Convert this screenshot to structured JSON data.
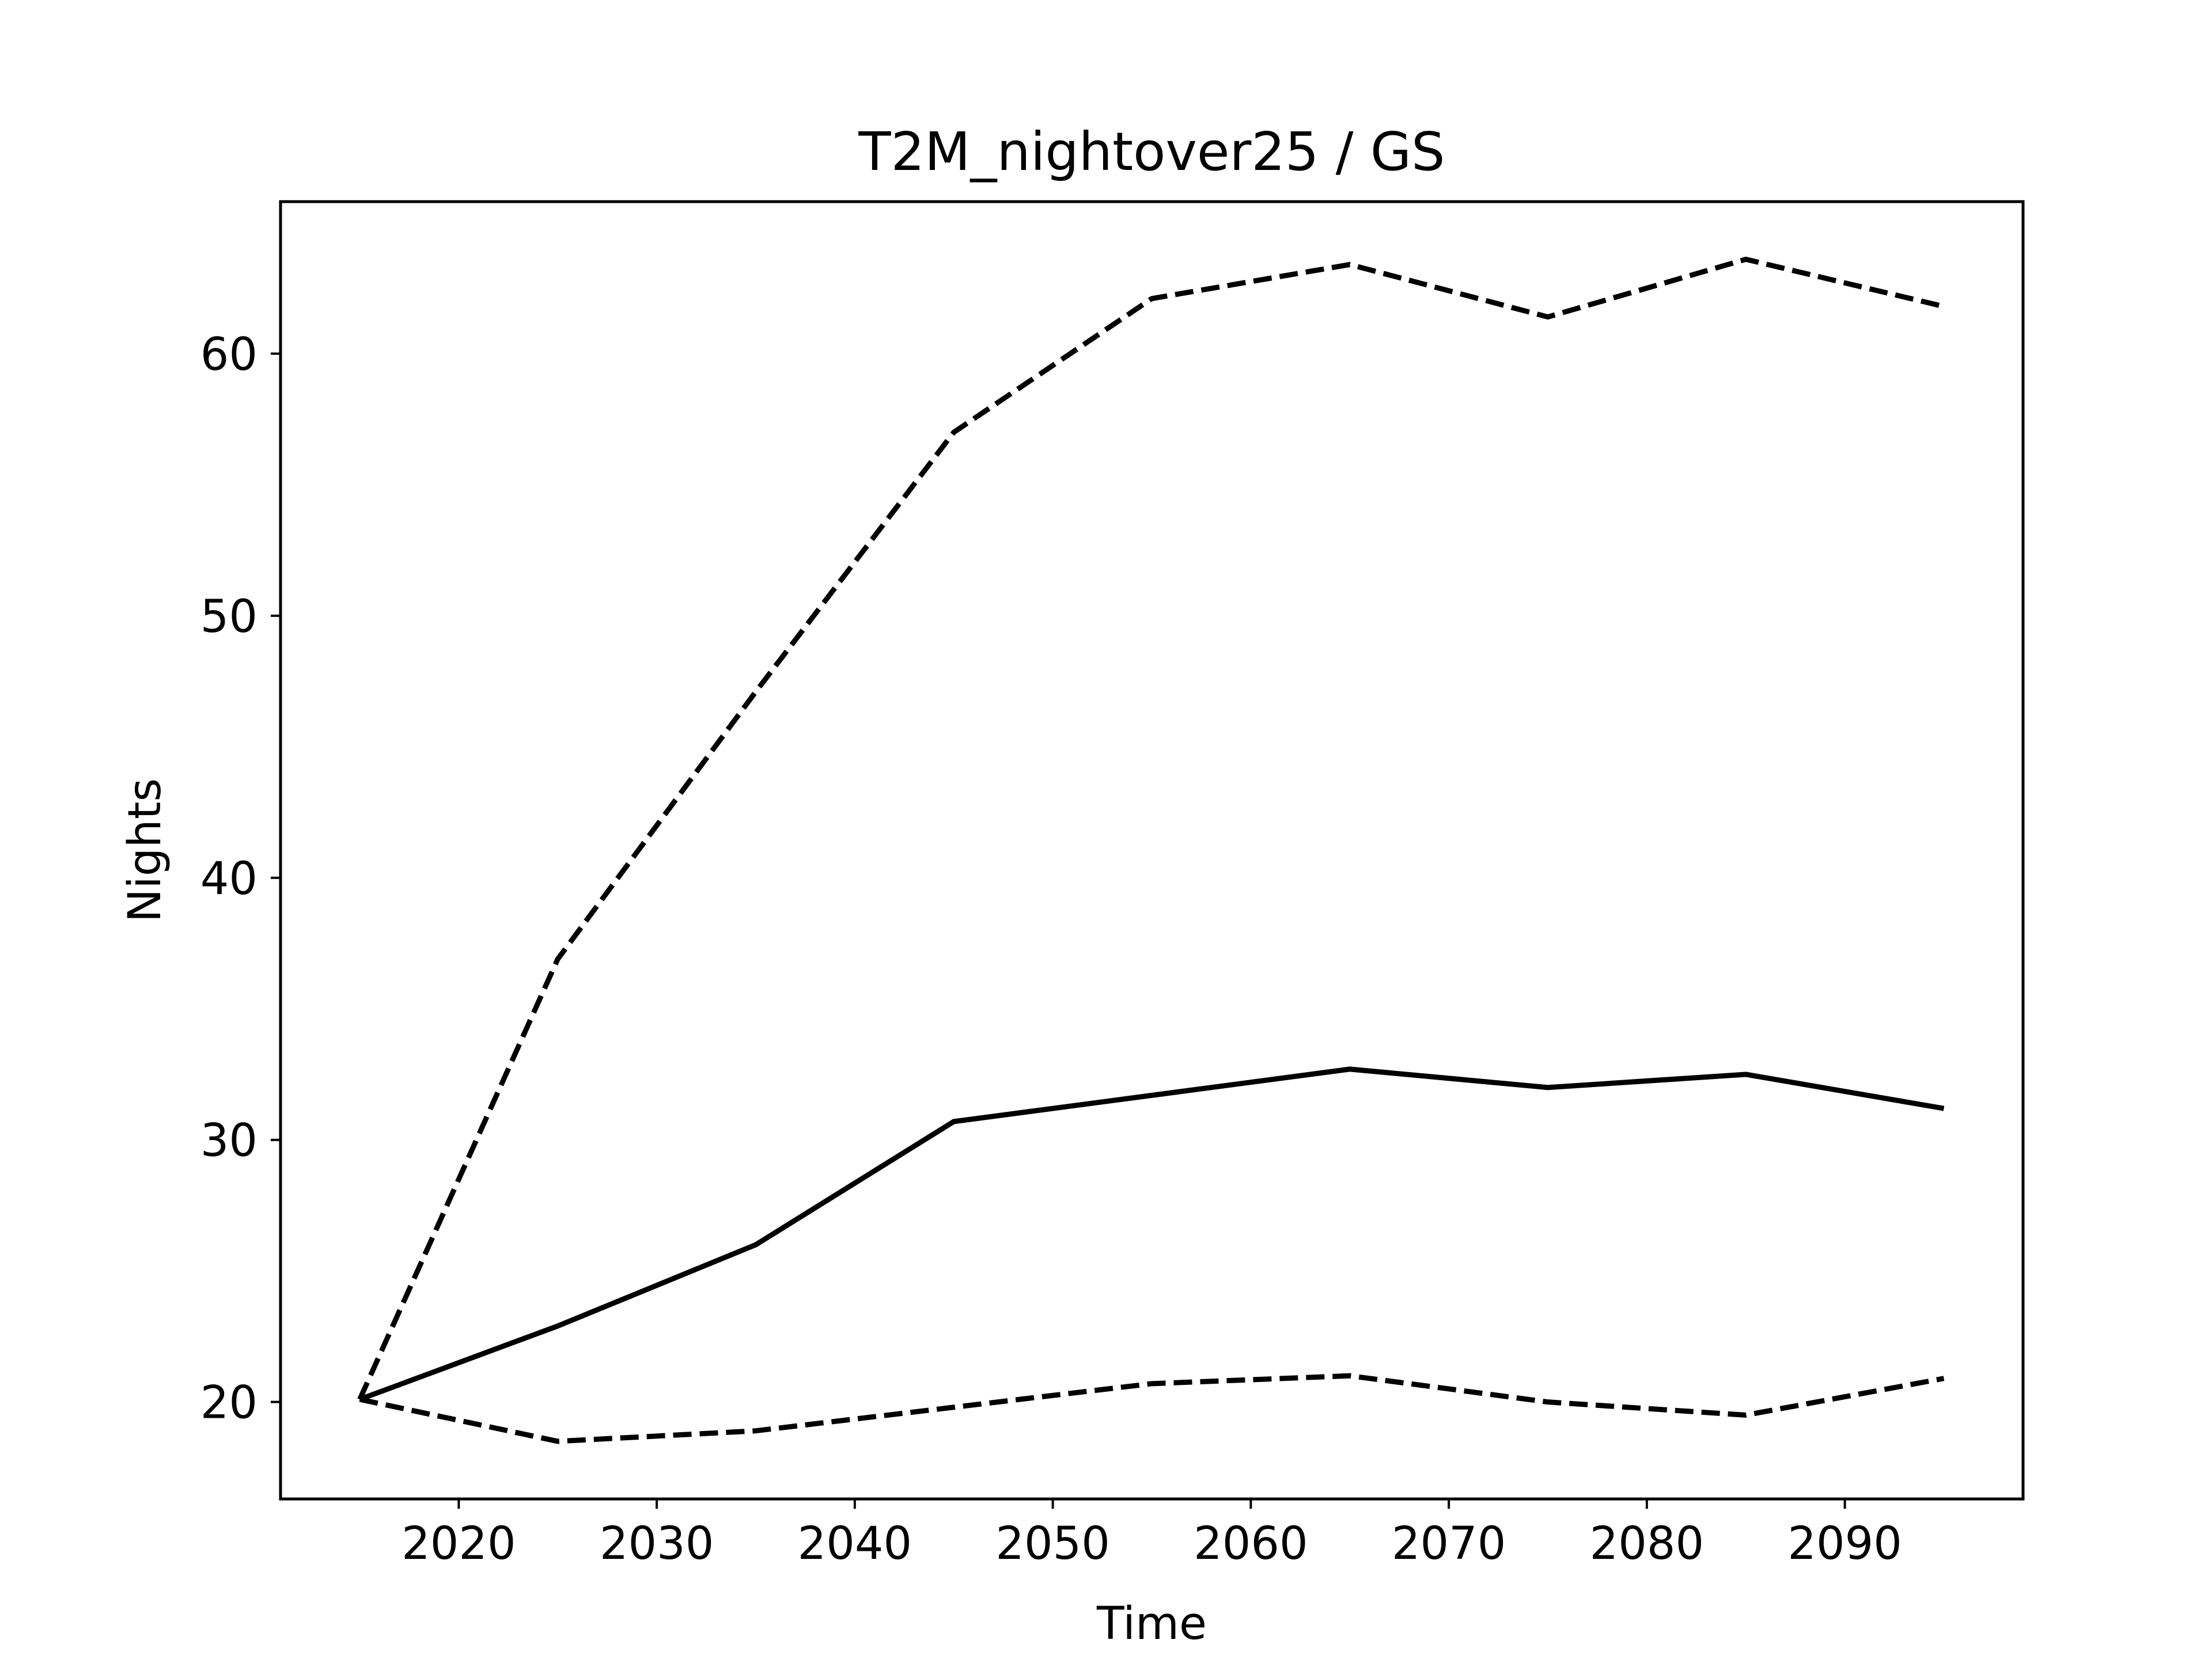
{
  "chart_data": {
    "type": "line",
    "title": "T2M_nightover25 / GS",
    "xlabel": "Time",
    "ylabel": "Nights",
    "xlim": [
      2011,
      2099
    ],
    "ylim": [
      16.3,
      65.8
    ],
    "xticks": [
      2020,
      2030,
      2040,
      2050,
      2060,
      2070,
      2080,
      2090
    ],
    "yticks": [
      20,
      30,
      40,
      50,
      60
    ],
    "grid": false,
    "x": [
      2015,
      2025,
      2035,
      2045,
      2055,
      2065,
      2075,
      2085,
      2095
    ],
    "series": [
      {
        "style": "dashed",
        "color": "#000000",
        "values": [
          20.1,
          36.9,
          47.1,
          57.0,
          62.1,
          63.4,
          61.4,
          63.6,
          61.8
        ]
      },
      {
        "style": "solid",
        "color": "#000000",
        "values": [
          20.1,
          22.9,
          26.0,
          30.7,
          31.7,
          32.7,
          32.0,
          32.5,
          31.2
        ]
      },
      {
        "style": "dashed",
        "color": "#000000",
        "values": [
          20.1,
          18.5,
          18.9,
          19.8,
          20.7,
          21.0,
          20.0,
          19.5,
          20.9
        ]
      }
    ]
  }
}
